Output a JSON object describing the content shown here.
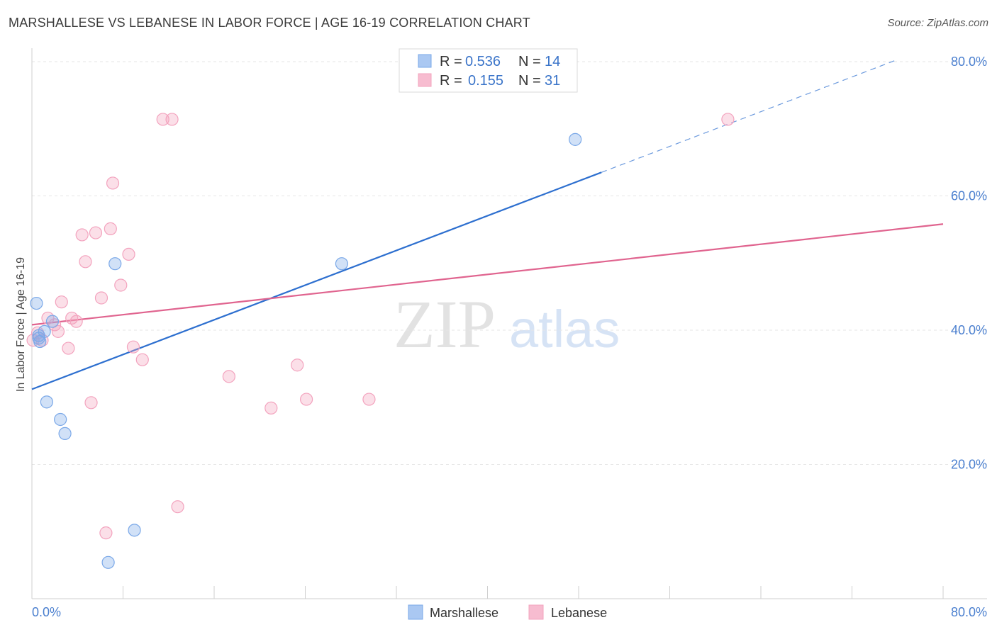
{
  "header": {
    "title": "MARSHALLESE VS LEBANESE IN LABOR FORCE | AGE 16-19 CORRELATION CHART",
    "source": "Source: ZipAtlas.com"
  },
  "watermark": {
    "zip": "ZIP",
    "atlas": "atlas"
  },
  "legend": {
    "r_label": "R =",
    "n_label": "N =",
    "rows": [
      {
        "r": "0.536",
        "n": "14",
        "color": "#aac8f2"
      },
      {
        "r": "0.155",
        "n": "31",
        "color": "#f7bcd0"
      }
    ]
  },
  "chart_data": {
    "type": "scatter",
    "title": "MARSHALLESE VS LEBANESE IN LABOR FORCE | AGE 16-19 CORRELATION CHART",
    "xlabel": "",
    "ylabel": "In Labor Force | Age 16-19",
    "xlim": [
      0,
      80
    ],
    "ylim": [
      0,
      82
    ],
    "x_tick_labels": [
      "0.0%",
      "80.0%"
    ],
    "y_ticks": [
      20,
      40,
      60,
      80
    ],
    "y_tick_labels": [
      "20.0%",
      "40.0%",
      "60.0%",
      "80.0%"
    ],
    "grid": true,
    "legend_position": "top-center",
    "series": [
      {
        "name": "Marshallese",
        "color": "#7aa8e8",
        "line_color": "#2d6fcf",
        "points": [
          [
            0.4,
            44.0
          ],
          [
            0.6,
            39.2
          ],
          [
            0.7,
            38.3
          ],
          [
            1.1,
            39.8
          ],
          [
            1.8,
            41.3
          ],
          [
            1.3,
            29.3
          ],
          [
            2.5,
            26.7
          ],
          [
            2.9,
            24.6
          ],
          [
            7.3,
            49.9
          ],
          [
            27.2,
            49.9
          ],
          [
            47.7,
            68.4
          ],
          [
            9.0,
            10.2
          ],
          [
            6.7,
            5.4
          ],
          [
            0.6,
            38.8
          ]
        ],
        "trend": {
          "x": [
            0,
            50
          ],
          "y": [
            31.2,
            63.5
          ]
        },
        "trend_dashed": {
          "x": [
            50,
            76
          ],
          "y": [
            63.5,
            80.3
          ]
        }
      },
      {
        "name": "Lebanese",
        "color": "#f3a3be",
        "line_color": "#e0648f",
        "points": [
          [
            0.1,
            38.5
          ],
          [
            0.9,
            38.5
          ],
          [
            1.4,
            41.8
          ],
          [
            2.0,
            40.8
          ],
          [
            2.3,
            39.8
          ],
          [
            2.6,
            44.2
          ],
          [
            3.2,
            37.3
          ],
          [
            3.5,
            41.8
          ],
          [
            3.9,
            41.3
          ],
          [
            4.4,
            54.2
          ],
          [
            4.7,
            50.2
          ],
          [
            5.2,
            29.2
          ],
          [
            5.6,
            54.5
          ],
          [
            6.1,
            44.8
          ],
          [
            6.5,
            9.8
          ],
          [
            6.9,
            55.1
          ],
          [
            7.1,
            61.9
          ],
          [
            7.8,
            46.7
          ],
          [
            8.5,
            51.3
          ],
          [
            8.9,
            37.5
          ],
          [
            9.7,
            35.6
          ],
          [
            11.5,
            71.4
          ],
          [
            12.3,
            71.4
          ],
          [
            12.8,
            13.7
          ],
          [
            17.3,
            33.1
          ],
          [
            21.0,
            28.4
          ],
          [
            23.3,
            34.8
          ],
          [
            24.1,
            29.7
          ],
          [
            29.6,
            29.7
          ],
          [
            61.1,
            71.4
          ],
          [
            0.5,
            39.6
          ]
        ],
        "trend": {
          "x": [
            0,
            80
          ],
          "y": [
            40.8,
            55.8
          ]
        }
      }
    ]
  },
  "bottom_legend": [
    {
      "label": "Marshallese",
      "color": "#aac8f2"
    },
    {
      "label": "Lebanese",
      "color": "#f7bcd0"
    }
  ]
}
